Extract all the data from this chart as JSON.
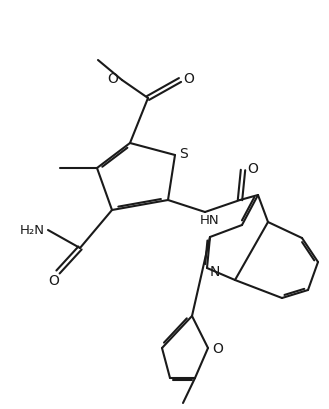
{
  "bg_color": "#ffffff",
  "line_color": "#1a1a1a",
  "line_width": 1.5,
  "figsize": [
    3.29,
    4.09
  ],
  "dpi": 100,
  "atoms": {
    "S_label": "S",
    "N_label": "N",
    "O_label": "O",
    "HN_label": "HN",
    "H2N_label": "H₂N"
  }
}
